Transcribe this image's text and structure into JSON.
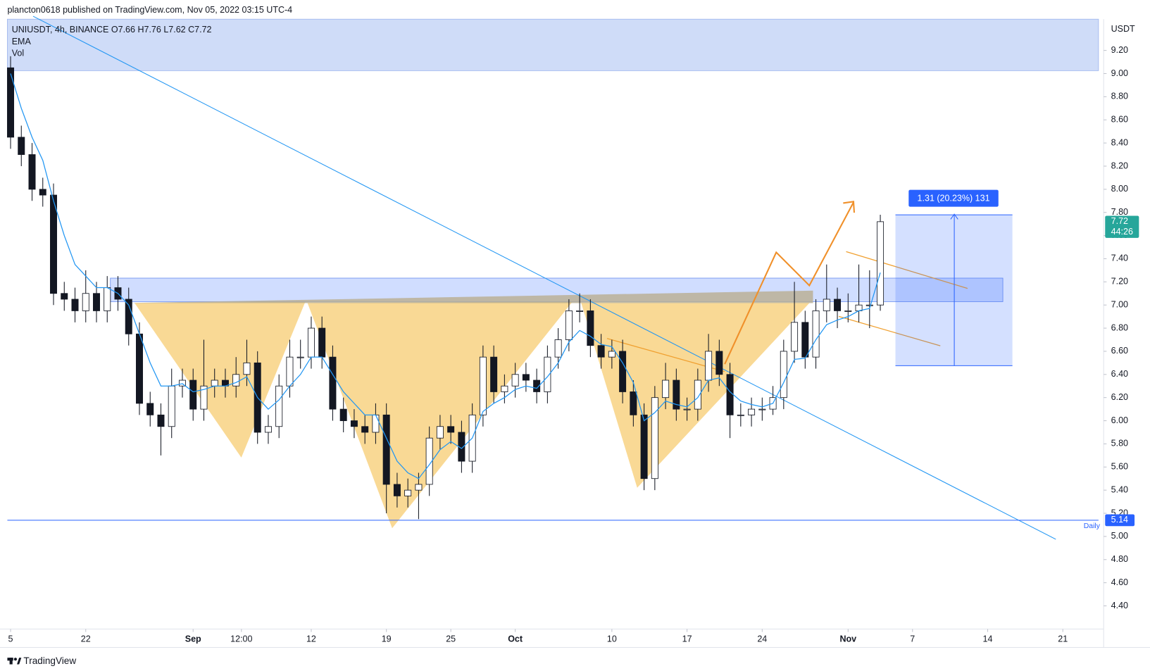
{
  "chart_data": {
    "type": "candlestick",
    "header": "plancton0618 published on TradingView.com, Nov 05, 2022 03:15 UTC-4",
    "legend_title": "UNIUSDT, 4h, BINANCE  O7.66  H7.76  L7.62  C7.72",
    "indicators": [
      "EMA",
      "Vol"
    ],
    "y_axis_unit": "USDT",
    "footer": "TradingView",
    "x": [
      0,
      1,
      2,
      3,
      4,
      5,
      6,
      7,
      8,
      9,
      10,
      11,
      12,
      13,
      14,
      15,
      16,
      17,
      18,
      19,
      20,
      21,
      22,
      23,
      24,
      25,
      26,
      27,
      28,
      29,
      30,
      31,
      32,
      33,
      34,
      35,
      36,
      37,
      38,
      39,
      40,
      41,
      42,
      43,
      44,
      45,
      46,
      47,
      48,
      49,
      50,
      51,
      52,
      53,
      54,
      55,
      56,
      57,
      58,
      59,
      60,
      61,
      62,
      63,
      64,
      65,
      66,
      67,
      68,
      69,
      70,
      71,
      72,
      73,
      74,
      75,
      76,
      77,
      78,
      79,
      80,
      81
    ],
    "open": [
      9.05,
      8.45,
      8.3,
      8.0,
      7.95,
      7.1,
      7.05,
      6.95,
      7.1,
      6.95,
      7.15,
      7.05,
      6.75,
      6.15,
      6.05,
      5.95,
      6.3,
      6.35,
      6.1,
      6.3,
      6.35,
      6.3,
      6.4,
      6.5,
      5.9,
      5.95,
      6.3,
      6.55,
      6.55,
      6.8,
      6.55,
      6.1,
      6.0,
      5.95,
      5.9,
      6.05,
      5.45,
      5.35,
      5.4,
      5.45,
      5.85,
      5.95,
      5.9,
      5.65,
      6.05,
      6.55,
      6.25,
      6.3,
      6.4,
      6.35,
      6.25,
      6.55,
      6.7,
      6.95,
      6.95,
      6.65,
      6.55,
      6.6,
      6.25,
      6.05,
      5.5,
      6.2,
      6.35,
      6.1,
      6.1,
      6.35,
      6.6,
      6.4,
      6.05,
      6.05,
      6.1,
      6.1,
      6.2,
      6.6,
      6.85,
      6.55,
      6.95,
      7.05,
      6.95,
      6.95,
      7.0,
      7.0
    ],
    "high": [
      9.15,
      8.55,
      8.4,
      8.1,
      8.05,
      7.2,
      7.15,
      7.3,
      7.2,
      7.25,
      7.25,
      7.15,
      6.85,
      6.25,
      6.15,
      6.45,
      6.45,
      6.45,
      6.7,
      6.45,
      6.45,
      6.55,
      6.7,
      6.6,
      6.05,
      6.4,
      6.7,
      6.7,
      6.9,
      6.9,
      6.65,
      6.2,
      6.1,
      6.05,
      6.15,
      6.15,
      5.55,
      5.5,
      5.55,
      5.95,
      6.05,
      6.05,
      6.0,
      6.15,
      6.65,
      6.65,
      6.4,
      6.5,
      6.5,
      6.45,
      6.65,
      6.8,
      7.05,
      7.1,
      7.05,
      6.75,
      6.7,
      6.7,
      6.35,
      6.15,
      6.3,
      6.5,
      6.45,
      6.2,
      6.45,
      6.75,
      6.7,
      6.5,
      6.15,
      6.2,
      6.2,
      6.3,
      6.7,
      7.2,
      6.95,
      7.05,
      7.35,
      7.15,
      7.1,
      7.35,
      7.3,
      7.78
    ],
    "low": [
      8.35,
      8.2,
      7.9,
      7.85,
      7.0,
      6.95,
      6.85,
      6.85,
      6.85,
      6.85,
      6.95,
      6.65,
      6.05,
      5.95,
      5.7,
      5.85,
      6.2,
      6.0,
      6.0,
      6.2,
      6.2,
      6.2,
      6.3,
      5.8,
      5.8,
      5.85,
      6.2,
      6.45,
      6.45,
      6.45,
      6.0,
      5.9,
      5.85,
      5.8,
      5.8,
      5.2,
      5.25,
      5.25,
      5.15,
      5.35,
      5.75,
      5.8,
      5.55,
      5.55,
      5.95,
      6.15,
      6.15,
      6.2,
      6.25,
      6.15,
      6.15,
      6.45,
      6.6,
      6.85,
      6.55,
      6.45,
      6.45,
      6.15,
      5.95,
      5.4,
      5.4,
      6.1,
      6.0,
      6.0,
      6.0,
      6.25,
      6.3,
      5.85,
      5.95,
      5.95,
      6.0,
      6.05,
      6.1,
      6.5,
      6.45,
      6.45,
      6.85,
      6.8,
      6.85,
      6.85,
      6.8,
      6.95
    ],
    "close": [
      8.45,
      8.3,
      8.0,
      7.95,
      7.1,
      7.05,
      6.95,
      7.1,
      6.95,
      7.15,
      7.05,
      6.75,
      6.15,
      6.05,
      5.95,
      6.3,
      6.35,
      6.1,
      6.3,
      6.35,
      6.3,
      6.4,
      6.5,
      5.9,
      5.95,
      6.3,
      6.55,
      6.55,
      6.8,
      6.55,
      6.1,
      6.0,
      5.95,
      5.9,
      6.05,
      5.45,
      5.35,
      5.4,
      5.45,
      5.85,
      5.95,
      5.9,
      5.65,
      6.05,
      6.55,
      6.25,
      6.3,
      6.4,
      6.35,
      6.25,
      6.55,
      6.7,
      6.95,
      6.95,
      6.65,
      6.55,
      6.6,
      6.25,
      6.05,
      5.5,
      6.2,
      6.35,
      6.1,
      6.1,
      6.35,
      6.6,
      6.4,
      6.05,
      6.05,
      6.1,
      6.1,
      6.2,
      6.6,
      6.85,
      6.55,
      6.95,
      7.05,
      6.95,
      6.95,
      7.0,
      7.0,
      7.72
    ],
    "up_color": "#ffffff",
    "down_color": "#131722",
    "wick_color": "#131722",
    "ema_values": [
      9.0,
      8.7,
      8.45,
      8.25,
      7.9,
      7.6,
      7.35,
      7.25,
      7.15,
      7.15,
      7.1,
      7.0,
      6.75,
      6.5,
      6.3,
      6.3,
      6.32,
      6.25,
      6.27,
      6.3,
      6.3,
      6.33,
      6.38,
      6.2,
      6.1,
      6.18,
      6.3,
      6.4,
      6.55,
      6.55,
      6.4,
      6.25,
      6.15,
      6.05,
      6.05,
      5.85,
      5.65,
      5.55,
      5.5,
      5.62,
      5.75,
      5.82,
      5.76,
      5.85,
      6.08,
      6.15,
      6.2,
      6.27,
      6.3,
      6.28,
      6.38,
      6.5,
      6.68,
      6.78,
      6.73,
      6.66,
      6.64,
      6.5,
      6.33,
      6.0,
      6.07,
      6.17,
      6.14,
      6.12,
      6.2,
      6.35,
      6.37,
      6.25,
      6.17,
      6.14,
      6.12,
      6.15,
      6.33,
      6.53,
      6.54,
      6.7,
      6.83,
      6.87,
      6.9,
      6.95,
      6.97,
      7.28
    ],
    "ema_color": "#2196f3",
    "last_price": 7.72,
    "countdown": "44:26",
    "last_price_color": "#26a69a",
    "hline": {
      "value": 5.14,
      "label": "Daily",
      "color": "#2962ff"
    },
    "measure_label": "1.31 (20.23%) 131",
    "xlim": [
      -0.3,
      101.8
    ],
    "ylim": [
      4.2,
      9.47
    ],
    "xticks": [
      {
        "value": 0,
        "label": "5"
      },
      {
        "value": 7,
        "label": "22"
      },
      {
        "value": 17,
        "label": "Sep"
      },
      {
        "value": 21.5,
        "label": "12:00"
      },
      {
        "value": 28,
        "label": "12"
      },
      {
        "value": 35,
        "label": "19"
      },
      {
        "value": 41,
        "label": "25"
      },
      {
        "value": 47,
        "label": "Oct"
      },
      {
        "value": 56,
        "label": "10"
      },
      {
        "value": 63,
        "label": "17"
      },
      {
        "value": 70,
        "label": "24"
      },
      {
        "value": 78,
        "label": "Nov"
      },
      {
        "value": 84,
        "label": "7"
      },
      {
        "value": 91,
        "label": "14"
      },
      {
        "value": 98,
        "label": "21"
      }
    ],
    "yticks": [
      {
        "value": 4.4,
        "label": "4.40"
      },
      {
        "value": 4.6,
        "label": "4.60"
      },
      {
        "value": 4.8,
        "label": "4.80"
      },
      {
        "value": 5.0,
        "label": "5.00"
      },
      {
        "value": 5.2,
        "label": "5.20"
      },
      {
        "value": 5.4,
        "label": "5.40"
      },
      {
        "value": 5.6,
        "label": "5.60"
      },
      {
        "value": 5.8,
        "label": "5.80"
      },
      {
        "value": 6.0,
        "label": "6.00"
      },
      {
        "value": 6.2,
        "label": "6.20"
      },
      {
        "value": 6.4,
        "label": "6.40"
      },
      {
        "value": 6.6,
        "label": "6.60"
      },
      {
        "value": 6.8,
        "label": "6.80"
      },
      {
        "value": 7.0,
        "label": "7.00"
      },
      {
        "value": 7.2,
        "label": "7.20"
      },
      {
        "value": 7.4,
        "label": "7.40"
      },
      {
        "value": 7.6,
        "label": "7.60"
      },
      {
        "value": 7.8,
        "label": "7.80"
      },
      {
        "value": 8.0,
        "label": "8.00"
      },
      {
        "value": 8.2,
        "label": "8.20"
      },
      {
        "value": 8.4,
        "label": "8.40"
      },
      {
        "value": 8.6,
        "label": "8.60"
      },
      {
        "value": 8.8,
        "label": "8.80"
      },
      {
        "value": 9.0,
        "label": "9.00"
      },
      {
        "value": 9.2,
        "label": "9.20"
      }
    ]
  }
}
